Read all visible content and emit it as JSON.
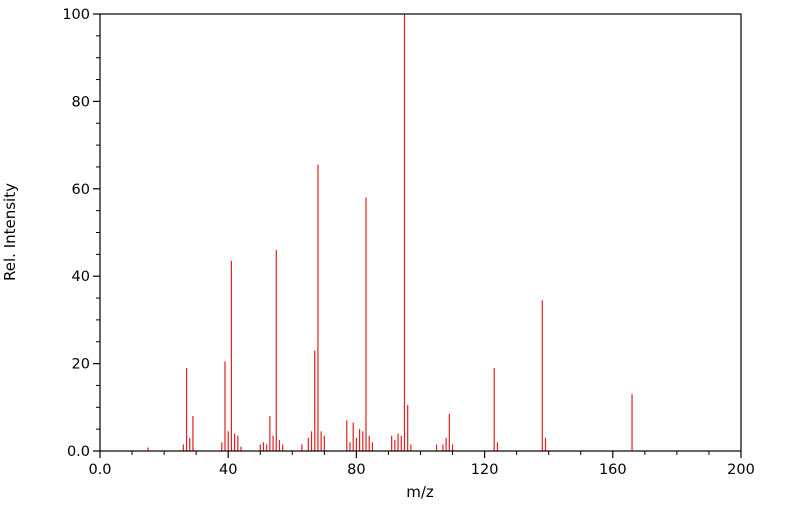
{
  "figure": {
    "background": "#ffffff"
  },
  "chart_data": {
    "type": "bar",
    "subtype": "mass-spectrum-stem-plot",
    "title": "",
    "xlabel": "m/z",
    "ylabel": "Rel. Intensity",
    "xlim": [
      0,
      200
    ],
    "ylim": [
      0,
      100
    ],
    "xticks": [
      0,
      40,
      80,
      120,
      160,
      200
    ],
    "xtick_labels": [
      "0.0",
      "40",
      "80",
      "120",
      "160",
      "200"
    ],
    "x_minor_step": 10,
    "yticks": [
      0,
      20,
      40,
      60,
      80,
      100
    ],
    "ytick_labels": [
      "0.0",
      "20",
      "40",
      "60",
      "80",
      "100"
    ],
    "y_minor_step": 5,
    "grid": false,
    "legend": null,
    "line_color": "#e02020",
    "axis_color": "#000000",
    "peaks": [
      [
        15,
        0.8
      ],
      [
        26,
        1.5
      ],
      [
        27,
        19
      ],
      [
        28,
        3
      ],
      [
        29,
        8
      ],
      [
        38,
        2
      ],
      [
        39,
        20.5
      ],
      [
        40,
        4.5
      ],
      [
        41,
        43.5
      ],
      [
        42,
        4
      ],
      [
        43,
        3.5
      ],
      [
        44,
        1
      ],
      [
        50,
        1.5
      ],
      [
        51,
        2
      ],
      [
        52,
        1.5
      ],
      [
        53,
        8
      ],
      [
        54,
        3.5
      ],
      [
        55,
        46
      ],
      [
        56,
        2.5
      ],
      [
        57,
        1.5
      ],
      [
        63,
        1.5
      ],
      [
        65,
        3
      ],
      [
        66,
        4.5
      ],
      [
        67,
        23
      ],
      [
        68,
        65.5
      ],
      [
        69,
        4.5
      ],
      [
        70,
        3.5
      ],
      [
        77,
        7
      ],
      [
        78,
        2
      ],
      [
        79,
        6.5
      ],
      [
        80,
        3
      ],
      [
        81,
        5
      ],
      [
        82,
        4.5
      ],
      [
        83,
        58
      ],
      [
        84,
        3.5
      ],
      [
        85,
        2
      ],
      [
        91,
        3.5
      ],
      [
        92,
        2.5
      ],
      [
        93,
        4
      ],
      [
        94,
        3.5
      ],
      [
        95,
        100
      ],
      [
        96,
        10.5
      ],
      [
        97,
        1.5
      ],
      [
        105,
        1.5
      ],
      [
        107,
        1.5
      ],
      [
        108,
        3
      ],
      [
        109,
        8.5
      ],
      [
        110,
        1.5
      ],
      [
        123,
        19
      ],
      [
        124,
        2
      ],
      [
        138,
        34.5
      ],
      [
        139,
        3
      ],
      [
        166,
        13
      ]
    ]
  }
}
